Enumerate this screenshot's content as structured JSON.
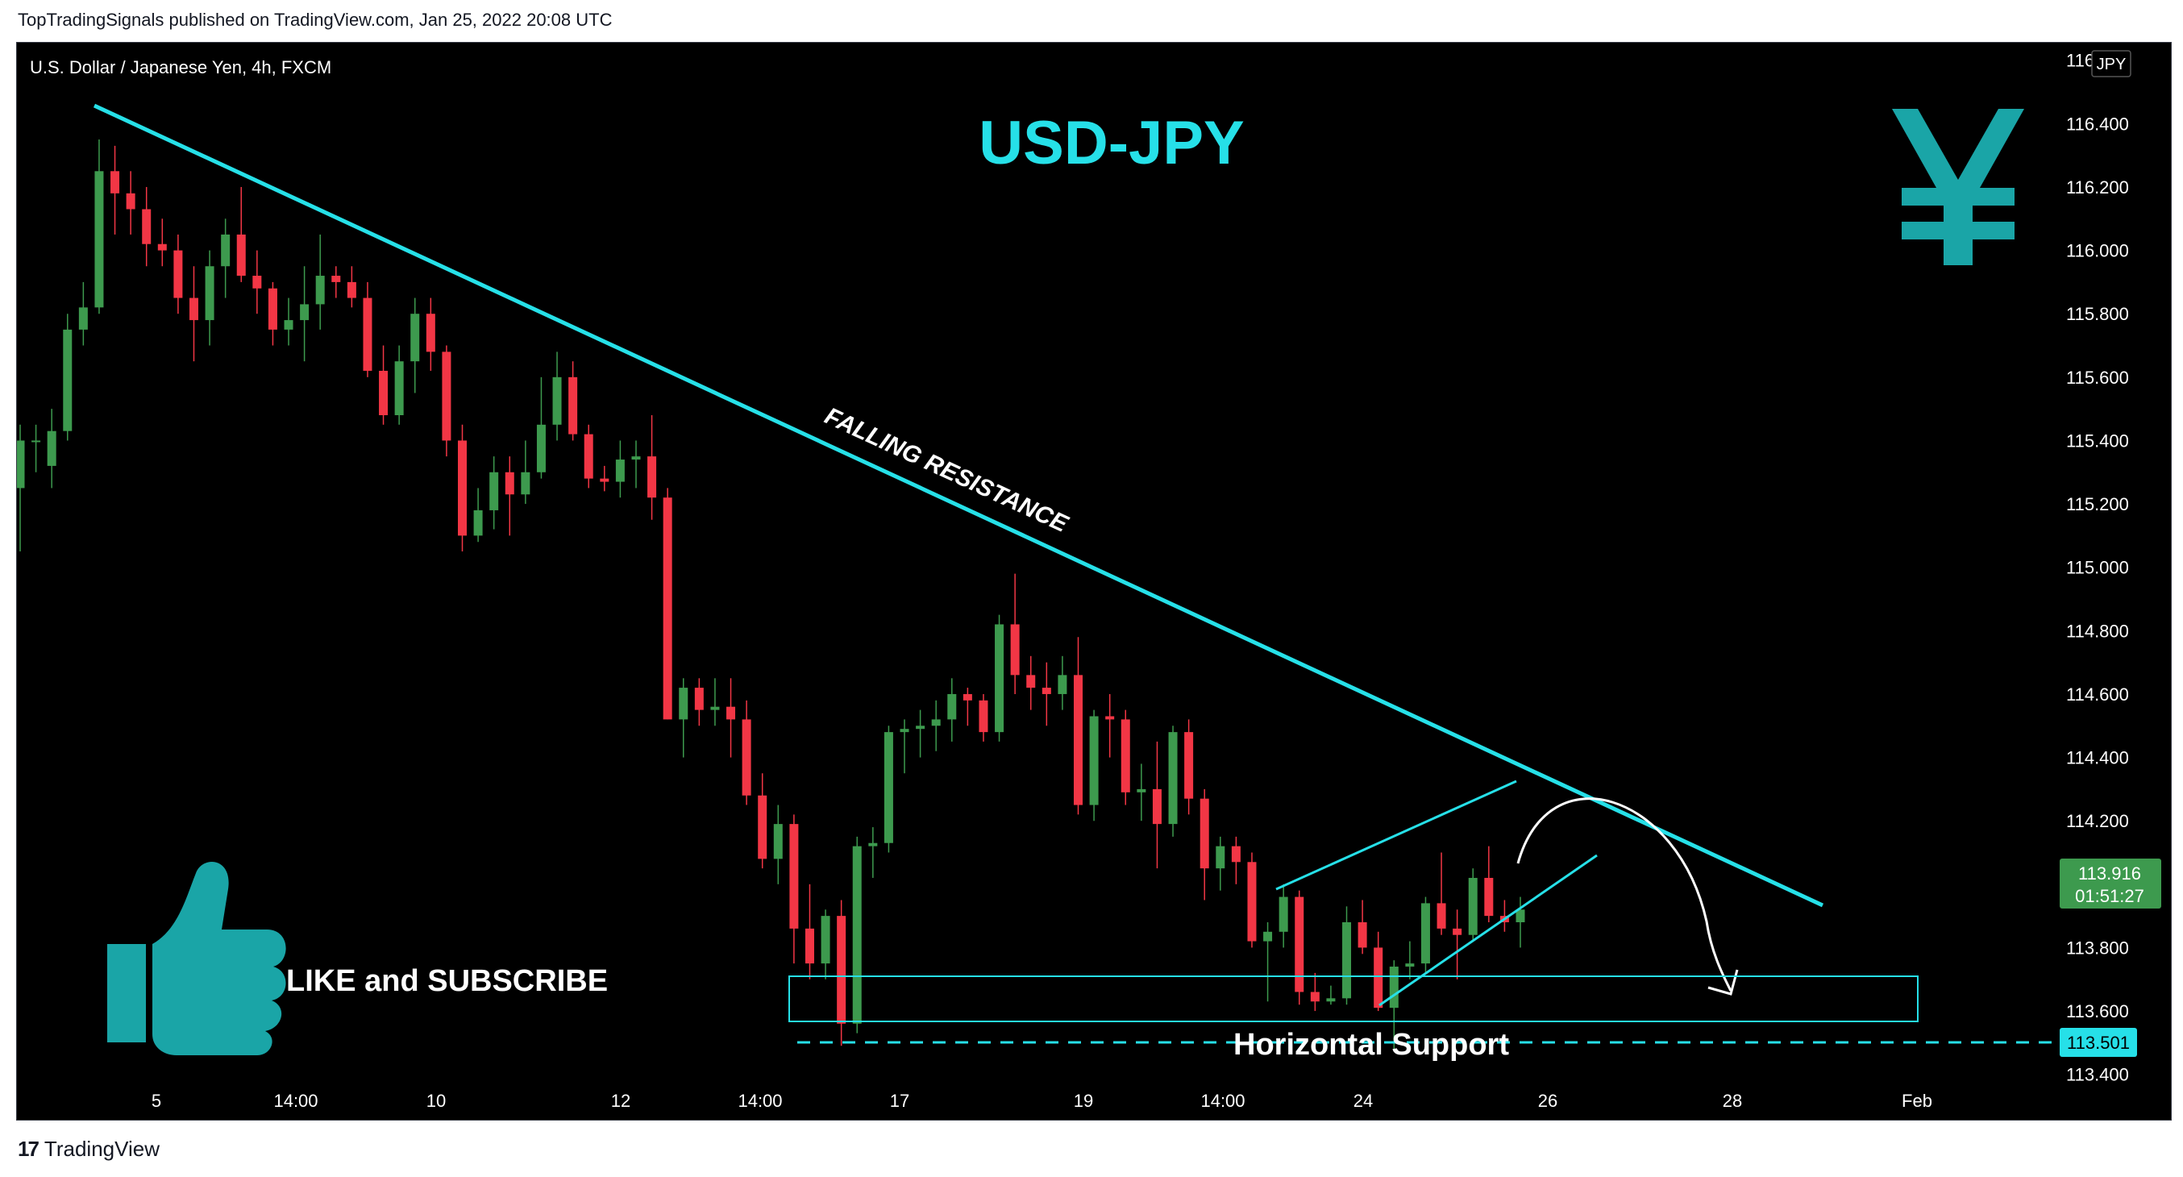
{
  "publish_line": "TopTradingSignals published on TradingView.com, Jan 25, 2022 20:08 UTC",
  "symbol_line": "U.S. Dollar / Japanese Yen, 4h, FXCM",
  "branding": {
    "footer": "TradingView",
    "logo_mark": "17"
  },
  "colors": {
    "up_candle": "#26a69a",
    "up_candle_render": "#3d9a4e",
    "down_candle": "#f23645",
    "annotation": "#26e0e8",
    "axis_text": "#ffffff",
    "price_label_green": "#3d9a4e"
  },
  "annotations": {
    "title": "USD-JPY",
    "trendline_label": "FALLING RESISTANCE",
    "support_label": "Horizontal Support",
    "cta": "LIKE and SUBSCRIBE",
    "currency_icon": "yen-icon",
    "cta_icon": "thumbs-up-icon"
  },
  "chart_data": {
    "type": "candlestick",
    "currency": "JPY",
    "ylim": [
      113.3,
      116.64
    ],
    "y_ticks": [
      "116.600",
      "116.400",
      "116.200",
      "116.000",
      "115.800",
      "115.600",
      "115.400",
      "115.200",
      "115.000",
      "114.800",
      "114.600",
      "114.400",
      "114.200",
      "114.000",
      "113.800",
      "113.600",
      "113.400"
    ],
    "x_ticks": [
      "5",
      "14:00",
      "10",
      "12",
      "14:00",
      "17",
      "19",
      "14:00",
      "24",
      "26",
      "28",
      "Feb"
    ],
    "last_price": "113.916",
    "countdown": "01:51:27",
    "support_level": "113.501",
    "candles": [
      {
        "o": 115.25,
        "h": 115.45,
        "l": 115.05,
        "c": 115.4
      },
      {
        "o": 115.4,
        "h": 115.45,
        "l": 115.3,
        "c": 115.4
      },
      {
        "o": 115.32,
        "h": 115.5,
        "l": 115.25,
        "c": 115.43
      },
      {
        "o": 115.43,
        "h": 115.8,
        "l": 115.4,
        "c": 115.75
      },
      {
        "o": 115.75,
        "h": 115.9,
        "l": 115.7,
        "c": 115.82
      },
      {
        "o": 115.82,
        "h": 116.35,
        "l": 115.8,
        "c": 116.25
      },
      {
        "o": 116.25,
        "h": 116.33,
        "l": 116.05,
        "c": 116.18
      },
      {
        "o": 116.18,
        "h": 116.25,
        "l": 116.05,
        "c": 116.13
      },
      {
        "o": 116.13,
        "h": 116.2,
        "l": 115.95,
        "c": 116.02
      },
      {
        "o": 116.02,
        "h": 116.1,
        "l": 115.95,
        "c": 116.0
      },
      {
        "o": 116.0,
        "h": 116.05,
        "l": 115.8,
        "c": 115.85
      },
      {
        "o": 115.85,
        "h": 115.95,
        "l": 115.65,
        "c": 115.78
      },
      {
        "o": 115.78,
        "h": 116.0,
        "l": 115.7,
        "c": 115.95
      },
      {
        "o": 115.95,
        "h": 116.1,
        "l": 115.85,
        "c": 116.05
      },
      {
        "o": 116.05,
        "h": 116.2,
        "l": 115.9,
        "c": 115.92
      },
      {
        "o": 115.92,
        "h": 116.0,
        "l": 115.8,
        "c": 115.88
      },
      {
        "o": 115.88,
        "h": 115.9,
        "l": 115.7,
        "c": 115.75
      },
      {
        "o": 115.75,
        "h": 115.85,
        "l": 115.7,
        "c": 115.78
      },
      {
        "o": 115.78,
        "h": 115.95,
        "l": 115.65,
        "c": 115.83
      },
      {
        "o": 115.83,
        "h": 116.05,
        "l": 115.75,
        "c": 115.92
      },
      {
        "o": 115.92,
        "h": 115.95,
        "l": 115.85,
        "c": 115.9
      },
      {
        "o": 115.9,
        "h": 115.95,
        "l": 115.82,
        "c": 115.85
      },
      {
        "o": 115.85,
        "h": 115.9,
        "l": 115.6,
        "c": 115.62
      },
      {
        "o": 115.62,
        "h": 115.7,
        "l": 115.45,
        "c": 115.48
      },
      {
        "o": 115.48,
        "h": 115.7,
        "l": 115.45,
        "c": 115.65
      },
      {
        "o": 115.65,
        "h": 115.85,
        "l": 115.55,
        "c": 115.8
      },
      {
        "o": 115.8,
        "h": 115.85,
        "l": 115.62,
        "c": 115.68
      },
      {
        "o": 115.68,
        "h": 115.7,
        "l": 115.35,
        "c": 115.4
      },
      {
        "o": 115.4,
        "h": 115.45,
        "l": 115.05,
        "c": 115.1
      },
      {
        "o": 115.1,
        "h": 115.25,
        "l": 115.08,
        "c": 115.18
      },
      {
        "o": 115.18,
        "h": 115.35,
        "l": 115.12,
        "c": 115.3
      },
      {
        "o": 115.3,
        "h": 115.35,
        "l": 115.1,
        "c": 115.23
      },
      {
        "o": 115.23,
        "h": 115.4,
        "l": 115.2,
        "c": 115.3
      },
      {
        "o": 115.3,
        "h": 115.6,
        "l": 115.28,
        "c": 115.45
      },
      {
        "o": 115.45,
        "h": 115.68,
        "l": 115.4,
        "c": 115.6
      },
      {
        "o": 115.6,
        "h": 115.65,
        "l": 115.4,
        "c": 115.42
      },
      {
        "o": 115.42,
        "h": 115.45,
        "l": 115.25,
        "c": 115.28
      },
      {
        "o": 115.28,
        "h": 115.32,
        "l": 115.24,
        "c": 115.27
      },
      {
        "o": 115.27,
        "h": 115.4,
        "l": 115.22,
        "c": 115.34
      },
      {
        "o": 115.34,
        "h": 115.4,
        "l": 115.25,
        "c": 115.35
      },
      {
        "o": 115.35,
        "h": 115.48,
        "l": 115.15,
        "c": 115.22
      },
      {
        "o": 115.22,
        "h": 115.25,
        "l": 114.52,
        "c": 114.52
      },
      {
        "o": 114.52,
        "h": 114.65,
        "l": 114.4,
        "c": 114.62
      },
      {
        "o": 114.62,
        "h": 114.65,
        "l": 114.5,
        "c": 114.55
      },
      {
        "o": 114.55,
        "h": 114.65,
        "l": 114.5,
        "c": 114.56
      },
      {
        "o": 114.56,
        "h": 114.65,
        "l": 114.4,
        "c": 114.52
      },
      {
        "o": 114.52,
        "h": 114.58,
        "l": 114.25,
        "c": 114.28
      },
      {
        "o": 114.28,
        "h": 114.35,
        "l": 114.05,
        "c": 114.08
      },
      {
        "o": 114.08,
        "h": 114.25,
        "l": 114.0,
        "c": 114.19
      },
      {
        "o": 114.19,
        "h": 114.22,
        "l": 113.75,
        "c": 113.86
      },
      {
        "o": 113.86,
        "h": 114.0,
        "l": 113.7,
        "c": 113.75
      },
      {
        "o": 113.75,
        "h": 113.92,
        "l": 113.7,
        "c": 113.9
      },
      {
        "o": 113.9,
        "h": 113.95,
        "l": 113.49,
        "c": 113.56
      },
      {
        "o": 113.56,
        "h": 114.15,
        "l": 113.53,
        "c": 114.12
      },
      {
        "o": 114.12,
        "h": 114.18,
        "l": 114.02,
        "c": 114.13
      },
      {
        "o": 114.13,
        "h": 114.5,
        "l": 114.1,
        "c": 114.48
      },
      {
        "o": 114.48,
        "h": 114.52,
        "l": 114.35,
        "c": 114.49
      },
      {
        "o": 114.49,
        "h": 114.55,
        "l": 114.4,
        "c": 114.5
      },
      {
        "o": 114.5,
        "h": 114.58,
        "l": 114.42,
        "c": 114.52
      },
      {
        "o": 114.52,
        "h": 114.65,
        "l": 114.45,
        "c": 114.6
      },
      {
        "o": 114.6,
        "h": 114.62,
        "l": 114.5,
        "c": 114.58
      },
      {
        "o": 114.58,
        "h": 114.6,
        "l": 114.45,
        "c": 114.48
      },
      {
        "o": 114.48,
        "h": 114.85,
        "l": 114.45,
        "c": 114.82
      },
      {
        "o": 114.82,
        "h": 114.98,
        "l": 114.6,
        "c": 114.66
      },
      {
        "o": 114.66,
        "h": 114.72,
        "l": 114.55,
        "c": 114.62
      },
      {
        "o": 114.62,
        "h": 114.7,
        "l": 114.5,
        "c": 114.6
      },
      {
        "o": 114.6,
        "h": 114.72,
        "l": 114.55,
        "c": 114.66
      },
      {
        "o": 114.66,
        "h": 114.78,
        "l": 114.22,
        "c": 114.25
      },
      {
        "o": 114.25,
        "h": 114.55,
        "l": 114.2,
        "c": 114.53
      },
      {
        "o": 114.53,
        "h": 114.6,
        "l": 114.4,
        "c": 114.52
      },
      {
        "o": 114.52,
        "h": 114.55,
        "l": 114.25,
        "c": 114.29
      },
      {
        "o": 114.29,
        "h": 114.38,
        "l": 114.2,
        "c": 114.3
      },
      {
        "o": 114.3,
        "h": 114.45,
        "l": 114.05,
        "c": 114.19
      },
      {
        "o": 114.19,
        "h": 114.5,
        "l": 114.15,
        "c": 114.48
      },
      {
        "o": 114.48,
        "h": 114.52,
        "l": 114.22,
        "c": 114.27
      },
      {
        "o": 114.27,
        "h": 114.3,
        "l": 113.95,
        "c": 114.05
      },
      {
        "o": 114.05,
        "h": 114.15,
        "l": 113.98,
        "c": 114.12
      },
      {
        "o": 114.12,
        "h": 114.15,
        "l": 114.0,
        "c": 114.07
      },
      {
        "o": 114.07,
        "h": 114.1,
        "l": 113.8,
        "c": 113.82
      },
      {
        "o": 113.82,
        "h": 113.88,
        "l": 113.63,
        "c": 113.85
      },
      {
        "o": 113.85,
        "h": 114.0,
        "l": 113.8,
        "c": 113.96
      },
      {
        "o": 113.96,
        "h": 113.98,
        "l": 113.62,
        "c": 113.66
      },
      {
        "o": 113.66,
        "h": 113.72,
        "l": 113.6,
        "c": 113.63
      },
      {
        "o": 113.63,
        "h": 113.68,
        "l": 113.62,
        "c": 113.64
      },
      {
        "o": 113.64,
        "h": 113.93,
        "l": 113.62,
        "c": 113.88
      },
      {
        "o": 113.88,
        "h": 113.95,
        "l": 113.78,
        "c": 113.8
      },
      {
        "o": 113.8,
        "h": 113.85,
        "l": 113.6,
        "c": 113.61
      },
      {
        "o": 113.61,
        "h": 113.76,
        "l": 113.48,
        "c": 113.74
      },
      {
        "o": 113.74,
        "h": 113.82,
        "l": 113.7,
        "c": 113.75
      },
      {
        "o": 113.75,
        "h": 113.96,
        "l": 113.72,
        "c": 113.94
      },
      {
        "o": 113.94,
        "h": 114.1,
        "l": 113.84,
        "c": 113.86
      },
      {
        "o": 113.86,
        "h": 113.92,
        "l": 113.7,
        "c": 113.84
      },
      {
        "o": 113.84,
        "h": 114.05,
        "l": 113.82,
        "c": 114.02
      },
      {
        "o": 114.02,
        "h": 114.12,
        "l": 113.88,
        "c": 113.9
      },
      {
        "o": 113.9,
        "h": 113.95,
        "l": 113.85,
        "c": 113.88
      },
      {
        "o": 113.88,
        "h": 113.96,
        "l": 113.8,
        "c": 113.92
      }
    ]
  }
}
